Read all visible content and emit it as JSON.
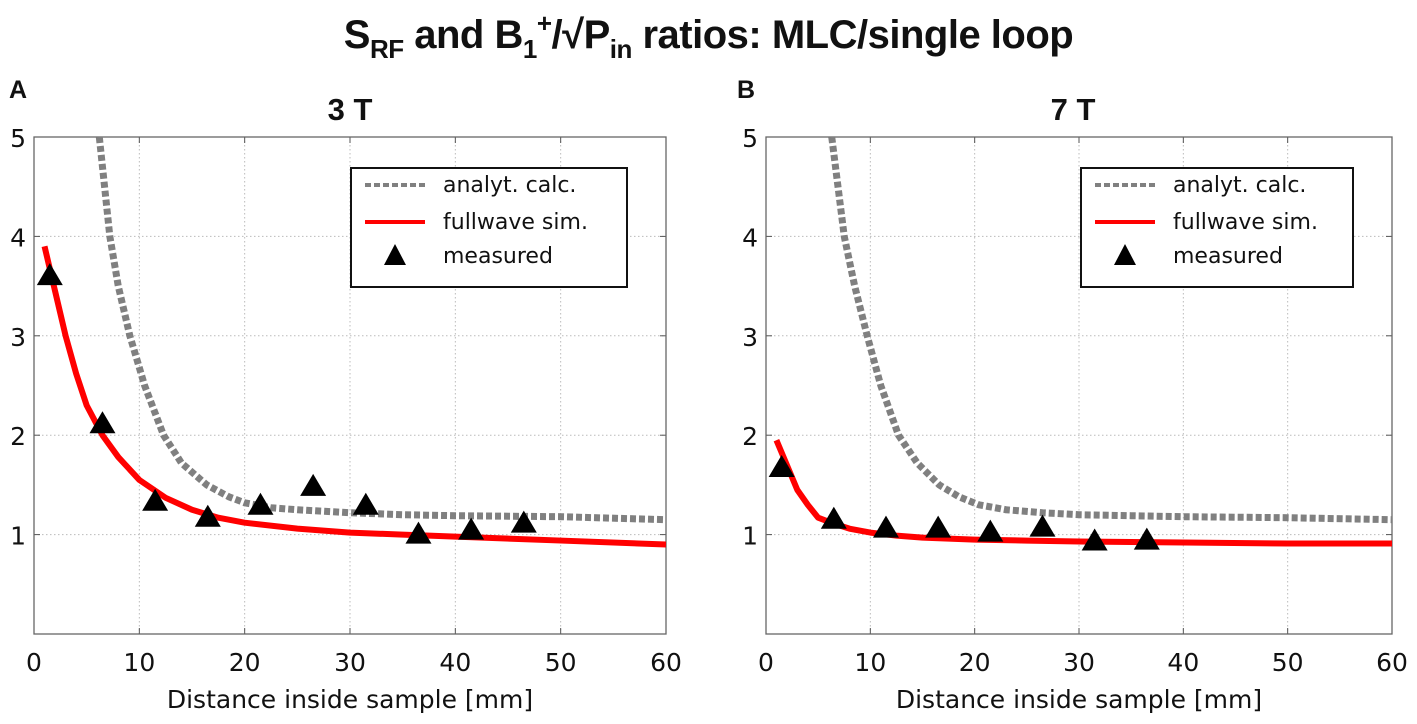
{
  "title": {
    "s": "S",
    "s_sub": "RF",
    "mid": " and B",
    "b_sub": "1",
    "b_sup": "+",
    "rest": "/√P",
    "p_sub": "in",
    "end": " ratios: MLC/single loop"
  },
  "colors": {
    "analytic": "#808080",
    "fullwave": "#ff0000",
    "measured": "#000000",
    "grid": "#bbbbbb"
  },
  "chart_data": [
    {
      "type": "line",
      "panel_label": "A",
      "title": "3 T",
      "xlabel": "Distance inside sample [mm]",
      "ylabel": "",
      "xlim": [
        0,
        60
      ],
      "ylim": [
        0,
        5
      ],
      "xticks": [
        0,
        10,
        20,
        30,
        40,
        50,
        60
      ],
      "yticks": [
        1,
        2,
        3,
        4,
        5
      ],
      "ytick_labels": [
        "1",
        "2",
        "3",
        "4",
        "5"
      ],
      "xtick_labels": [
        "0",
        "10",
        "20",
        "30",
        "40",
        "50",
        "60"
      ],
      "grid": true,
      "legend_position": "top-right",
      "legend": [
        "analyt. calc.",
        "fullwave sim.",
        "measured"
      ],
      "series": [
        {
          "name": "analyt. calc.",
          "style": "dashed",
          "x": [
            6.2,
            7.2,
            8.0,
            9.1,
            10.5,
            12.3,
            14.0,
            16.4,
            18.5,
            20.0,
            22.5,
            25,
            30,
            35,
            40,
            50,
            60
          ],
          "y": [
            5.0,
            4.0,
            3.5,
            3.0,
            2.5,
            2.0,
            1.72,
            1.5,
            1.38,
            1.32,
            1.27,
            1.25,
            1.22,
            1.2,
            1.19,
            1.18,
            1.15
          ]
        },
        {
          "name": "fullwave sim.",
          "style": "solid",
          "x": [
            1.0,
            2.0,
            3.0,
            4.0,
            5.0,
            6.5,
            8.0,
            10.0,
            12.5,
            15.0,
            17.5,
            20.0,
            25,
            30,
            35,
            40,
            50,
            60
          ],
          "y": [
            3.9,
            3.45,
            3.0,
            2.62,
            2.3,
            2.0,
            1.78,
            1.55,
            1.37,
            1.25,
            1.17,
            1.12,
            1.06,
            1.02,
            1.0,
            0.98,
            0.94,
            0.9
          ]
        },
        {
          "name": "measured",
          "style": "marker",
          "x": [
            1.5,
            6.5,
            11.5,
            16.5,
            21.5,
            26.5,
            31.5,
            36.5,
            41.5,
            46.5
          ],
          "y": [
            3.6,
            2.11,
            1.33,
            1.17,
            1.29,
            1.48,
            1.29,
            1.0,
            1.04,
            1.11
          ]
        }
      ]
    },
    {
      "type": "line",
      "panel_label": "B",
      "title": "7 T",
      "xlabel": "Distance inside sample [mm]",
      "ylabel": "",
      "xlim": [
        0,
        60
      ],
      "ylim": [
        0,
        5
      ],
      "xticks": [
        0,
        10,
        20,
        30,
        40,
        50,
        60
      ],
      "yticks": [
        1,
        2,
        3,
        4,
        5
      ],
      "ytick_labels": [
        "1",
        "2",
        "3",
        "4",
        "5"
      ],
      "xtick_labels": [
        "0",
        "10",
        "20",
        "30",
        "40",
        "50",
        "60"
      ],
      "grid": true,
      "legend_position": "top-right",
      "legend": [
        "analyt. calc.",
        "fullwave sim.",
        "measured"
      ],
      "series": [
        {
          "name": "analyt. calc.",
          "style": "dashed",
          "x": [
            6.3,
            7.5,
            8.5,
            9.7,
            11.0,
            12.7,
            14.5,
            16.6,
            18.5,
            20.4,
            23,
            26.5,
            30,
            35,
            40,
            50,
            60
          ],
          "y": [
            5.0,
            4.0,
            3.5,
            3.0,
            2.5,
            2.0,
            1.72,
            1.5,
            1.38,
            1.3,
            1.25,
            1.22,
            1.2,
            1.19,
            1.18,
            1.17,
            1.15
          ]
        },
        {
          "name": "fullwave sim.",
          "style": "solid",
          "x": [
            1.0,
            2.0,
            3.0,
            4.0,
            5.0,
            6.5,
            8.0,
            10.0,
            12.5,
            15,
            20,
            25,
            30,
            40,
            50,
            60
          ],
          "y": [
            1.95,
            1.7,
            1.45,
            1.3,
            1.17,
            1.11,
            1.06,
            1.02,
            0.99,
            0.97,
            0.95,
            0.94,
            0.93,
            0.92,
            0.91,
            0.91
          ]
        },
        {
          "name": "measured",
          "style": "marker",
          "x": [
            1.5,
            6.5,
            11.5,
            16.5,
            21.5,
            26.5,
            31.5,
            36.5
          ],
          "y": [
            1.67,
            1.15,
            1.06,
            1.06,
            1.02,
            1.07,
            0.93,
            0.94
          ]
        }
      ]
    }
  ]
}
